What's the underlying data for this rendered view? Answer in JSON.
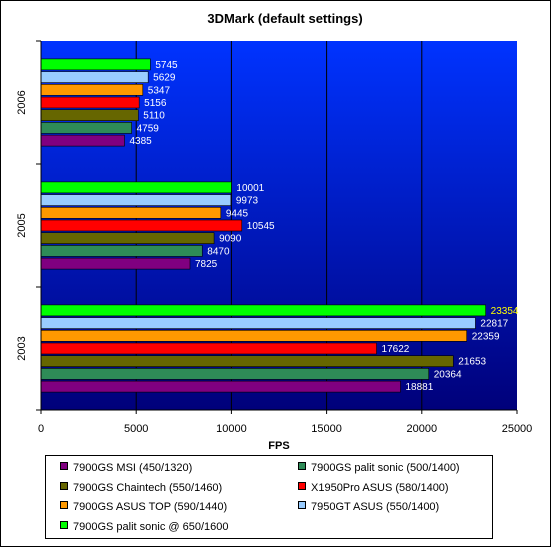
{
  "chart_data": {
    "type": "bar",
    "orientation": "horizontal",
    "title": "3DMark (default settings)",
    "xlabel": "FPS",
    "ylabel": "",
    "xlim": [
      0,
      25000
    ],
    "x_ticks": [
      "0",
      "5000",
      "10000",
      "15000",
      "20000",
      "25000"
    ],
    "categories": [
      "2006",
      "2005",
      "2003"
    ],
    "grid": true,
    "legend_position": "bottom",
    "plot_background": "gradient blue",
    "series": [
      {
        "name": "7900GS MSI (450/1320)",
        "color": "#800080",
        "values": [
          4385,
          7825,
          18881
        ]
      },
      {
        "name": "7900GS palit sonic (500/1400)",
        "color": "#2e8b57",
        "values": [
          4759,
          8470,
          20364
        ]
      },
      {
        "name": "7900GS Chaintech (550/1460)",
        "color": "#666600",
        "values": [
          5110,
          9090,
          21653
        ]
      },
      {
        "name": "X1950Pro ASUS (580/1400)",
        "color": "#ff0000",
        "values": [
          5156,
          10545,
          17622
        ]
      },
      {
        "name": "7900GS ASUS TOP (590/1440)",
        "color": "#ff9900",
        "values": [
          5347,
          9445,
          22359
        ]
      },
      {
        "name": "7950GT ASUS (550/1400)",
        "color": "#99ccff",
        "values": [
          5629,
          9973,
          22817
        ]
      },
      {
        "name": "7900GS palit sonic @ 650/1600",
        "color": "#00ff00",
        "values": [
          5745,
          10001,
          23354
        ]
      }
    ]
  }
}
